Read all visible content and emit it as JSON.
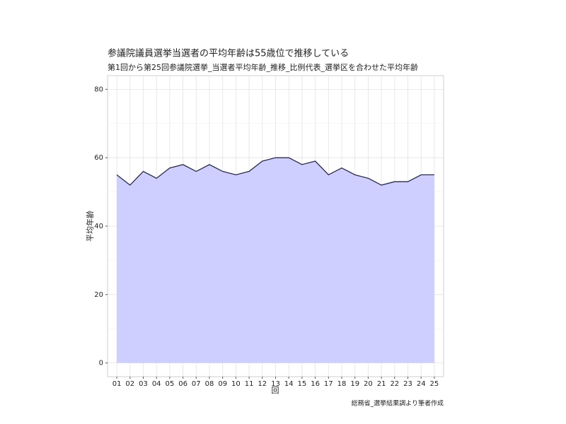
{
  "chart_data": {
    "type": "area",
    "title": "参議院議員選挙当選者の平均年齢は55歳位で推移している",
    "subtitle": "第1回から第25回参議院選挙_当選者平均年齢_推移_比例代表_選挙区を合わせた平均年齢",
    "x_label": "回",
    "y_label": "平均年齢",
    "caption": "総務省_選挙結果調より筆者作成",
    "categories": [
      "01",
      "02",
      "03",
      "04",
      "05",
      "06",
      "07",
      "08",
      "09",
      "10",
      "11",
      "12",
      "13",
      "14",
      "15",
      "16",
      "17",
      "18",
      "19",
      "20",
      "21",
      "22",
      "23",
      "24",
      "25"
    ],
    "values": [
      55,
      52,
      56,
      54,
      57,
      58,
      56,
      58,
      56,
      55,
      56,
      59,
      60,
      60,
      58,
      59,
      55,
      57,
      55,
      54,
      52,
      53,
      53,
      55,
      55
    ],
    "color": "#ccccff",
    "line_color": "#2a2a45",
    "ylim": [
      -4,
      84
    ],
    "yticks": [
      0,
      20,
      40,
      60,
      80
    ],
    "grid": true
  }
}
